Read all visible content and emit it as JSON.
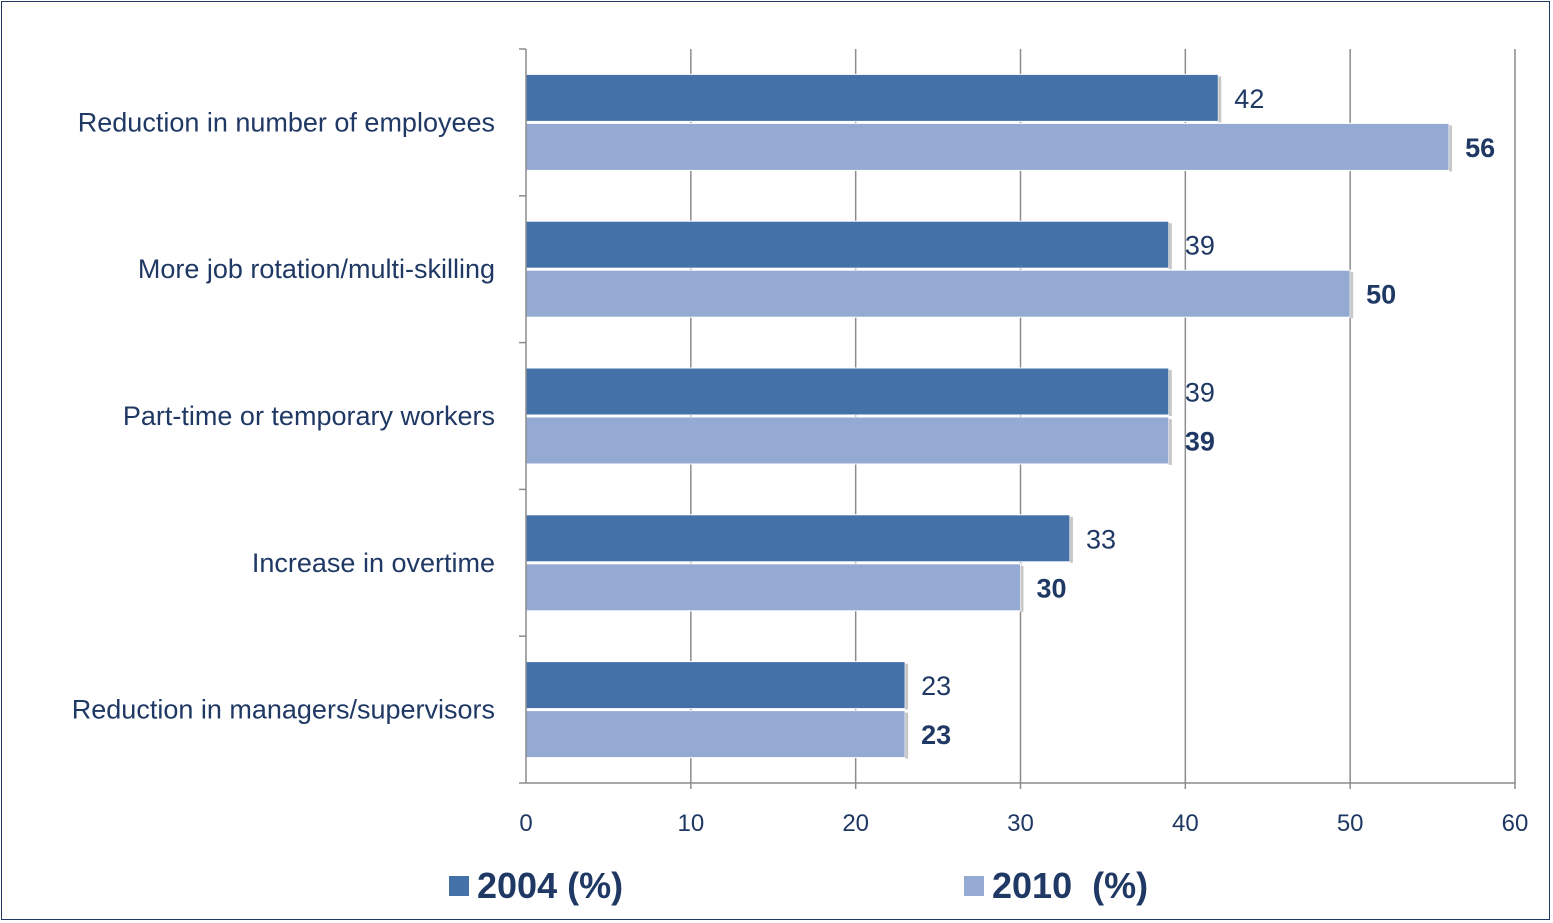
{
  "colors": {
    "series_2004": "#4472a8",
    "series_2010": "#95aad2",
    "text": "#1f3864",
    "grid": "#8c8c8c"
  },
  "chart_data": {
    "type": "bar",
    "orientation": "horizontal",
    "categories": [
      "Reduction in number of employees",
      "More job rotation/multi-skilling",
      "Part-time or temporary workers",
      "Increase in overtime",
      "Reduction in managers/supervisors"
    ],
    "series": [
      {
        "name": "2004 (%)",
        "values": [
          42,
          39,
          39,
          33,
          23
        ]
      },
      {
        "name": "2010  (%)",
        "values": [
          56,
          50,
          39,
          30,
          23
        ]
      }
    ],
    "title": "",
    "xlabel": "",
    "ylabel": "",
    "xlim": [
      0,
      60
    ],
    "xticks": [
      0,
      10,
      20,
      30,
      40,
      50,
      60
    ],
    "grid": "vertical",
    "legend": "bottom"
  }
}
